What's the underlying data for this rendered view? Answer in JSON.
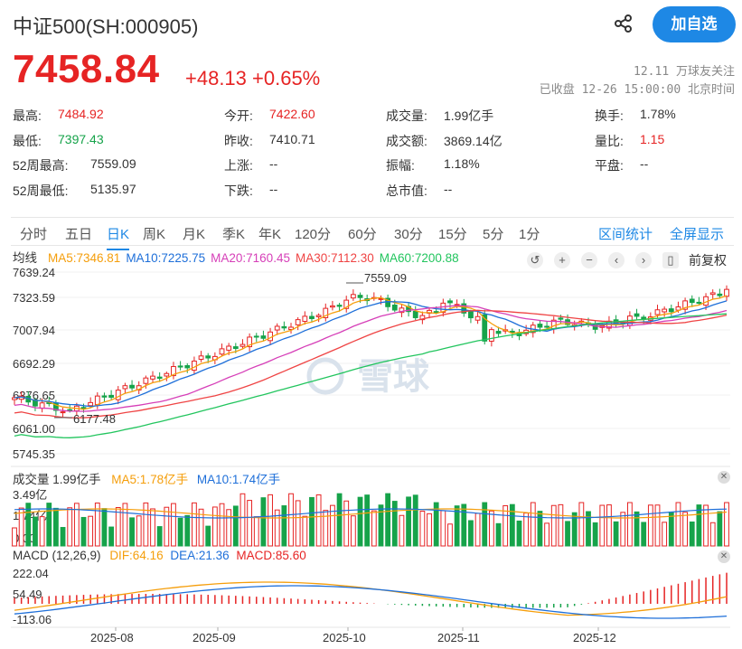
{
  "header": {
    "title": "中证500(SH:000905)",
    "follow_label": "加自选",
    "share_icon": "share-icon",
    "price": "7458.84",
    "change": "+48.13 +0.65%",
    "followers": "12.11 万球友关注",
    "status": "已收盘 12-26 15:00:00 北京时间"
  },
  "quote": [
    {
      "label": "最高:",
      "value": "7484.92",
      "color": "red"
    },
    {
      "label": "今开:",
      "value": "7422.60",
      "color": "red"
    },
    {
      "label": "成交量:",
      "value": "1.99亿手",
      "color": ""
    },
    {
      "label": "换手:",
      "value": "1.78%",
      "color": ""
    },
    {
      "label": "最低:",
      "value": "7397.43",
      "color": "green"
    },
    {
      "label": "昨收:",
      "value": "7410.71",
      "color": ""
    },
    {
      "label": "成交额:",
      "value": "3869.14亿",
      "color": ""
    },
    {
      "label": "量比:",
      "value": "1.15",
      "color": "red"
    },
    {
      "label": "52周最高:",
      "value": "7559.09",
      "color": ""
    },
    {
      "label": "上涨:",
      "value": "--",
      "color": ""
    },
    {
      "label": "振幅:",
      "value": "1.18%",
      "color": ""
    },
    {
      "label": "平盘:",
      "value": "--",
      "color": ""
    },
    {
      "label": "52周最低:",
      "value": "5135.97",
      "color": ""
    },
    {
      "label": "下跌:",
      "value": "--",
      "color": ""
    },
    {
      "label": "总市值:",
      "value": "--",
      "color": ""
    }
  ],
  "tabs": [
    "分时",
    "五日",
    "日K",
    "周K",
    "月K",
    "季K",
    "年K",
    "120分",
    "60分",
    "30分",
    "15分",
    "5分",
    "1分"
  ],
  "active_tab": "日K",
  "tabs_right": [
    "区间统计",
    "全屏显示"
  ],
  "ma_legend": {
    "title": "均线",
    "items": [
      {
        "text": "MA5:7346.81",
        "color": "#f59e0b"
      },
      {
        "text": "MA10:7225.75",
        "color": "#1e6fd9"
      },
      {
        "text": "MA20:7160.45",
        "color": "#d63fb8"
      },
      {
        "text": "MA30:7112.30",
        "color": "#ef4444"
      },
      {
        "text": "MA60:7200.88",
        "color": "#22c55e"
      }
    ]
  },
  "fuquan_label": "前复权",
  "watermark": "雪球",
  "kline_axis": [
    "7639.24",
    "7323.59",
    "7007.94",
    "6692.29",
    "6376.65",
    "6061.00",
    "5745.35"
  ],
  "kline_annotations": {
    "high": "7559.09",
    "low": "6177.48"
  },
  "volume": {
    "title": "成交量 1.99亿手",
    "ma5": "MA5:1.78亿手",
    "ma10": "MA10:1.74亿手",
    "axis_top": "3.49亿",
    "axis_mid": "1.74亿",
    "axis_zero": "0.00"
  },
  "macd": {
    "title": "MACD (12,26,9)",
    "dif": "DIF:64.16",
    "dea": "DEA:21.36",
    "macd": "MACD:85.60",
    "axis": [
      "222.04",
      "54.49",
      "-113.06"
    ]
  },
  "x_axis": [
    "2025-08",
    "2025-09",
    "2025-10",
    "2025-11",
    "2025-12"
  ],
  "colors": {
    "up": "#e62424",
    "down": "#16a34a",
    "accent": "#1e88e5"
  }
}
